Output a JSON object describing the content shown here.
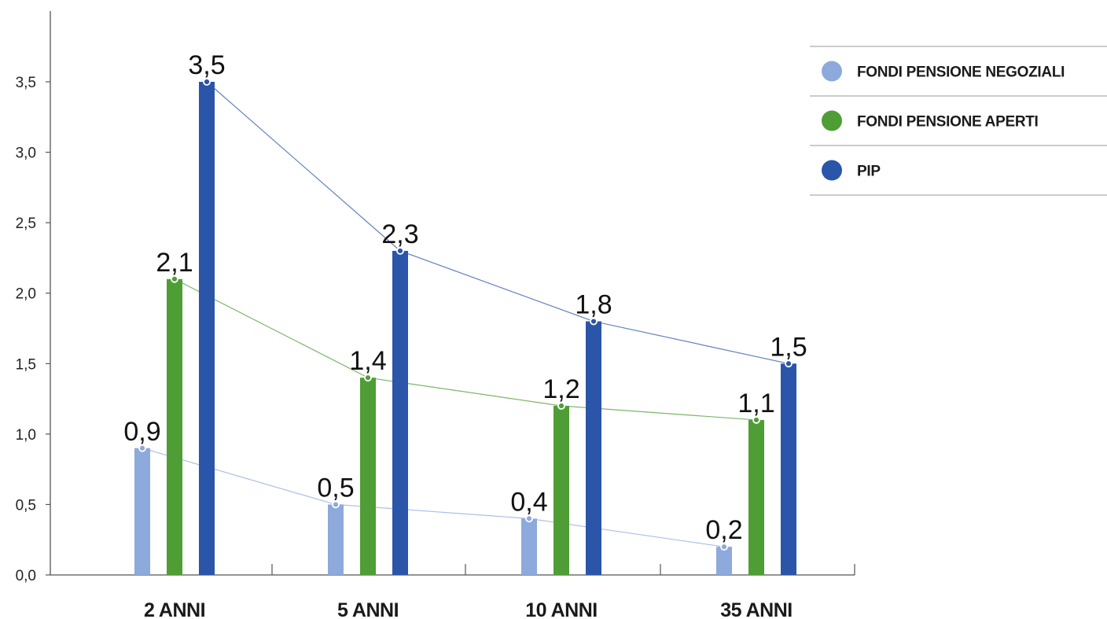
{
  "chart_data": {
    "type": "bar",
    "categories": [
      "2 ANNI",
      "5 ANNI",
      "10 ANNI",
      "35 ANNI"
    ],
    "series": [
      {
        "name": "FONDI PENSIONE NEGOZIALI",
        "color": "#8EA9DB",
        "values": [
          0.9,
          0.5,
          0.4,
          0.2
        ],
        "labels": [
          "0,9",
          "0,5",
          "0,4",
          "0,2"
        ]
      },
      {
        "name": "FONDI PENSIONE APERTI",
        "color": "#4F9E35",
        "values": [
          2.1,
          1.4,
          1.2,
          1.1
        ],
        "labels": [
          "2,1",
          "1,4",
          "1,2",
          "1,1"
        ]
      },
      {
        "name": "PIP",
        "color": "#2B55A8",
        "values": [
          3.5,
          2.3,
          1.8,
          1.5
        ],
        "labels": [
          "3,5",
          "2,3",
          "1,8",
          "1,5"
        ]
      }
    ],
    "y_ticks": [
      0,
      0.5,
      1.0,
      1.5,
      2.0,
      2.5,
      3.0,
      3.5
    ],
    "y_tick_labels": [
      "0,0",
      "0,5",
      "1,0",
      "1,5",
      "2,0",
      "2,5",
      "3,0",
      "3,5"
    ],
    "ylim": [
      0,
      4
    ],
    "legend_position": "top-right",
    "grid": false
  }
}
